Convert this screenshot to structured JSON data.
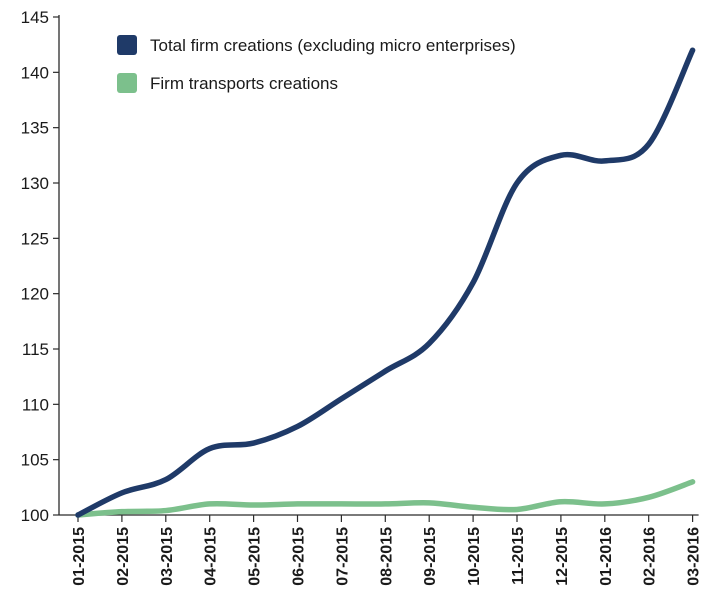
{
  "chart_data": {
    "type": "line",
    "title": "",
    "xlabel": "",
    "ylabel": "",
    "ylim": [
      100,
      145
    ],
    "yticks": [
      100,
      105,
      110,
      115,
      120,
      125,
      130,
      135,
      140,
      145
    ],
    "categories": [
      "01-2015",
      "02-2015",
      "03-2015",
      "04-2015",
      "05-2015",
      "06-2015",
      "07-2015",
      "08-2015",
      "09-2015",
      "10-2015",
      "11-2015",
      "12-2015",
      "01-2016",
      "02-2016",
      "03-2016"
    ],
    "grid": false,
    "legend_position": "top-left",
    "series": [
      {
        "name": "Total firm creations (excluding micro enterprises)",
        "color": "#1f3a68",
        "values": [
          100,
          102,
          103.2,
          106,
          106.5,
          108,
          110.5,
          113,
          115.5,
          121,
          130,
          132.5,
          132,
          133.5,
          142
        ]
      },
      {
        "name": "Firm transports creations",
        "color": "#7cc08c",
        "values": [
          100,
          100.3,
          100.4,
          101,
          100.9,
          101,
          101,
          101,
          101.1,
          100.7,
          100.5,
          101.2,
          101,
          101.6,
          103
        ]
      }
    ]
  }
}
